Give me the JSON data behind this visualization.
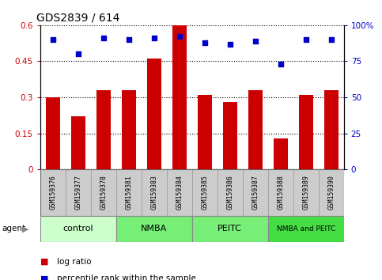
{
  "title": "GDS2839 / 614",
  "categories": [
    "GSM159376",
    "GSM159377",
    "GSM159378",
    "GSM159381",
    "GSM159383",
    "GSM159384",
    "GSM159385",
    "GSM159386",
    "GSM159387",
    "GSM159388",
    "GSM159389",
    "GSM159390"
  ],
  "log_ratio": [
    0.3,
    0.22,
    0.33,
    0.33,
    0.46,
    0.6,
    0.31,
    0.28,
    0.33,
    0.13,
    0.31,
    0.33
  ],
  "percentile_rank": [
    90,
    80,
    91,
    90,
    91,
    92,
    88,
    87,
    89,
    73,
    90,
    90
  ],
  "bar_color": "#cc0000",
  "dot_color": "#0000cc",
  "ylim_left": [
    0,
    0.6
  ],
  "ylim_right": [
    0,
    100
  ],
  "yticks_left": [
    0,
    0.15,
    0.3,
    0.45,
    0.6
  ],
  "ytick_labels_left": [
    "0",
    "0.15",
    "0.3",
    "0.45",
    "0.6"
  ],
  "yticks_right": [
    0,
    25,
    50,
    75,
    100
  ],
  "ytick_labels_right": [
    "0",
    "25",
    "50",
    "75",
    "100%"
  ],
  "groups": [
    {
      "label": "control",
      "start": 0,
      "end": 3,
      "color": "#ccffcc"
    },
    {
      "label": "NMBA",
      "start": 3,
      "end": 6,
      "color": "#77ee77"
    },
    {
      "label": "PEITC",
      "start": 6,
      "end": 9,
      "color": "#77ee77"
    },
    {
      "label": "NMBA and PEITC",
      "start": 9,
      "end": 12,
      "color": "#44dd44"
    }
  ],
  "agent_label": "agent",
  "legend_items": [
    {
      "label": "log ratio",
      "color": "#cc0000"
    },
    {
      "label": "percentile rank within the sample",
      "color": "#0000cc"
    }
  ],
  "tick_color_left": "#cc0000",
  "tick_color_right": "#0000cc",
  "xlabel_area_color": "#cccccc",
  "bar_width": 0.55
}
